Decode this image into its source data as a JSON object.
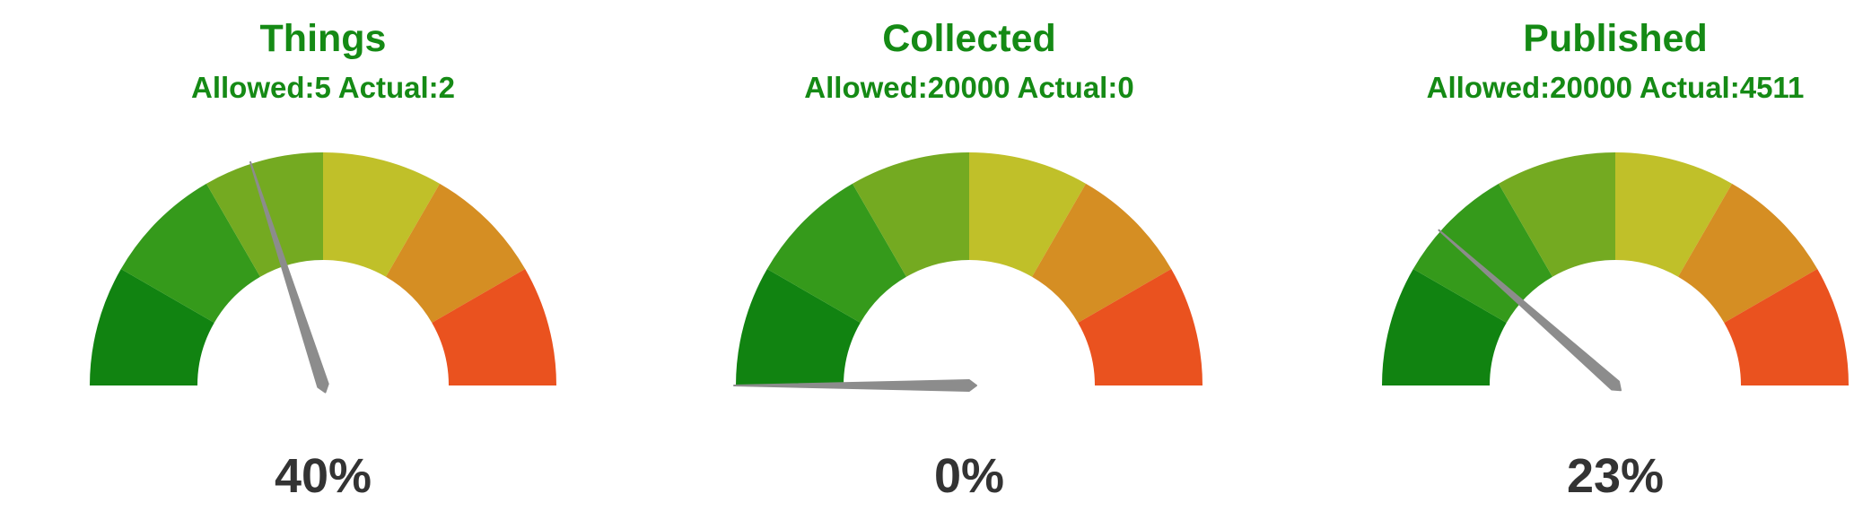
{
  "chart_data": [
    {
      "type": "gauge",
      "title": "Things",
      "subtitle": "Allowed:5 Actual:2",
      "value": 40,
      "value_label": "40%",
      "range": [
        0,
        100
      ]
    },
    {
      "type": "gauge",
      "title": "Collected",
      "subtitle": "Allowed:20000 Actual:0",
      "value": 0,
      "value_label": "0%",
      "range": [
        0,
        100
      ]
    },
    {
      "type": "gauge",
      "title": "Published",
      "subtitle": "Allowed:20000 Actual:4511",
      "value": 23,
      "value_label": "23%",
      "range": [
        0,
        100
      ]
    }
  ],
  "band_colors": [
    "#118311",
    "#359a1b",
    "#74aa21",
    "#c0c029",
    "#d58e23",
    "#ea521f"
  ],
  "needle_color": "#8c8c8c"
}
